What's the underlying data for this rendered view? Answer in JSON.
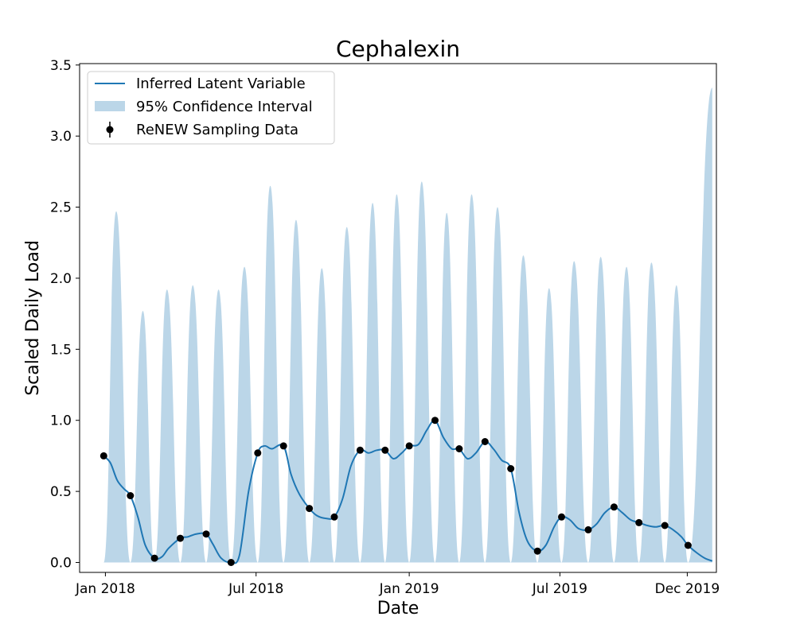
{
  "chart_data": {
    "type": "line",
    "title": "Cephalexin",
    "xlabel": "Date",
    "ylabel": "Scaled Daily Load",
    "x_type": "date",
    "xlim": [
      "2017-12-01",
      "2020-01-05"
    ],
    "ylim": [
      -0.07,
      3.51
    ],
    "x_ticks": [
      {
        "value": "2018-01-01",
        "label": "Jan 2018"
      },
      {
        "value": "2018-07-01",
        "label": "Jul 2018"
      },
      {
        "value": "2019-01-01",
        "label": "Jan 2019"
      },
      {
        "value": "2019-07-01",
        "label": "Jul 2019"
      },
      {
        "value": "2019-12-01",
        "label": "Dec 2019"
      }
    ],
    "y_ticks": [
      0.0,
      0.5,
      1.0,
      1.5,
      2.0,
      2.5,
      3.0,
      3.5
    ],
    "y_tick_labels": [
      "0.0",
      "0.5",
      "1.0",
      "1.5",
      "2.0",
      "2.5",
      "3.0",
      "3.5"
    ],
    "grid": false,
    "legend": {
      "position": "top-left",
      "entries": [
        "Inferred Latent Variable",
        "95% Confidence Interval",
        "ReNEW Sampling Data"
      ]
    },
    "series": [
      {
        "name": "ReNEW Sampling Data",
        "kind": "scatter",
        "color": "#000000",
        "x": [
          "2017-12-30",
          "2018-01-31",
          "2018-03-01",
          "2018-04-01",
          "2018-05-02",
          "2018-06-01",
          "2018-07-03",
          "2018-08-03",
          "2018-09-03",
          "2018-10-03",
          "2018-11-03",
          "2018-12-03",
          "2019-01-01",
          "2019-02-01",
          "2019-03-02",
          "2019-04-02",
          "2019-05-03",
          "2019-06-04",
          "2019-07-03",
          "2019-08-04",
          "2019-09-04",
          "2019-10-04",
          "2019-11-04",
          "2019-12-02"
        ],
        "y": [
          0.75,
          0.47,
          0.03,
          0.17,
          0.2,
          0.0,
          0.77,
          0.82,
          0.38,
          0.32,
          0.79,
          0.79,
          0.82,
          1.0,
          0.8,
          0.85,
          0.66,
          0.08,
          0.32,
          0.23,
          0.39,
          0.28,
          0.26,
          0.12
        ]
      },
      {
        "name": "Inferred Latent Variable",
        "kind": "line",
        "color": "#1f77b4",
        "x": [
          "2017-12-30",
          "2018-01-07",
          "2018-01-15",
          "2018-01-23",
          "2018-01-31",
          "2018-02-09",
          "2018-02-18",
          "2018-03-01",
          "2018-03-10",
          "2018-03-18",
          "2018-04-01",
          "2018-04-10",
          "2018-04-20",
          "2018-05-02",
          "2018-05-10",
          "2018-05-20",
          "2018-06-01",
          "2018-06-11",
          "2018-06-22",
          "2018-07-03",
          "2018-07-11",
          "2018-07-20",
          "2018-08-03",
          "2018-08-12",
          "2018-08-22",
          "2018-09-03",
          "2018-09-12",
          "2018-09-23",
          "2018-10-03",
          "2018-10-13",
          "2018-10-23",
          "2018-11-03",
          "2018-11-13",
          "2018-11-23",
          "2018-12-03",
          "2018-12-13",
          "2018-12-23",
          "2019-01-01",
          "2019-01-12",
          "2019-01-22",
          "2019-02-01",
          "2019-02-11",
          "2019-02-21",
          "2019-03-02",
          "2019-03-12",
          "2019-03-22",
          "2019-04-02",
          "2019-04-12",
          "2019-04-22",
          "2019-05-03",
          "2019-05-13",
          "2019-05-23",
          "2019-06-04",
          "2019-06-14",
          "2019-06-24",
          "2019-07-03",
          "2019-07-13",
          "2019-07-23",
          "2019-08-04",
          "2019-08-14",
          "2019-08-24",
          "2019-09-04",
          "2019-09-14",
          "2019-09-24",
          "2019-10-04",
          "2019-10-14",
          "2019-10-24",
          "2019-11-04",
          "2019-11-14",
          "2019-11-24",
          "2019-12-02",
          "2019-12-12",
          "2019-12-22",
          "2019-12-31"
        ],
        "y": [
          0.75,
          0.7,
          0.58,
          0.52,
          0.47,
          0.32,
          0.12,
          0.03,
          0.04,
          0.1,
          0.17,
          0.18,
          0.2,
          0.2,
          0.13,
          0.03,
          0.0,
          0.05,
          0.5,
          0.77,
          0.82,
          0.8,
          0.82,
          0.62,
          0.48,
          0.38,
          0.33,
          0.31,
          0.32,
          0.45,
          0.68,
          0.79,
          0.77,
          0.79,
          0.79,
          0.73,
          0.77,
          0.82,
          0.83,
          0.93,
          1.0,
          0.88,
          0.8,
          0.8,
          0.73,
          0.77,
          0.85,
          0.8,
          0.72,
          0.66,
          0.35,
          0.15,
          0.08,
          0.12,
          0.25,
          0.32,
          0.3,
          0.24,
          0.23,
          0.27,
          0.35,
          0.39,
          0.35,
          0.3,
          0.28,
          0.26,
          0.25,
          0.26,
          0.23,
          0.18,
          0.12,
          0.07,
          0.03,
          0.01
        ]
      }
    ],
    "confidence_band": {
      "name": "95% Confidence Interval",
      "color": "#1f77b4",
      "lower": 0.0,
      "x": [
        "2017-12-30",
        "2018-01-14",
        "2018-01-31",
        "2018-02-15",
        "2018-03-01",
        "2018-03-16",
        "2018-04-01",
        "2018-04-16",
        "2018-05-02",
        "2018-05-17",
        "2018-06-01",
        "2018-06-17",
        "2018-07-03",
        "2018-07-18",
        "2018-08-03",
        "2018-08-18",
        "2018-09-03",
        "2018-09-18",
        "2018-10-03",
        "2018-10-18",
        "2018-11-03",
        "2018-11-18",
        "2018-12-03",
        "2018-12-17",
        "2019-01-01",
        "2019-01-16",
        "2019-02-01",
        "2019-02-15",
        "2019-03-02",
        "2019-03-17",
        "2019-04-02",
        "2019-04-17",
        "2019-05-03",
        "2019-05-18",
        "2019-06-04",
        "2019-06-18",
        "2019-07-03",
        "2019-07-18",
        "2019-08-04",
        "2019-08-19",
        "2019-09-04",
        "2019-09-19",
        "2019-10-04",
        "2019-10-19",
        "2019-11-04",
        "2019-11-18",
        "2019-12-02",
        "2019-12-31"
      ],
      "upper": [
        0.0,
        2.47,
        0.0,
        1.77,
        0.0,
        1.92,
        0.0,
        1.95,
        0.0,
        1.92,
        0.0,
        2.08,
        0.0,
        2.65,
        0.0,
        2.41,
        0.0,
        2.07,
        0.0,
        2.36,
        0.0,
        2.53,
        0.0,
        2.59,
        0.0,
        2.68,
        0.0,
        2.46,
        0.0,
        2.59,
        0.0,
        2.5,
        0.0,
        2.16,
        0.0,
        1.93,
        0.0,
        2.12,
        0.0,
        2.15,
        0.0,
        2.08,
        0.0,
        2.11,
        0.0,
        1.95,
        0.0,
        3.34
      ]
    }
  }
}
